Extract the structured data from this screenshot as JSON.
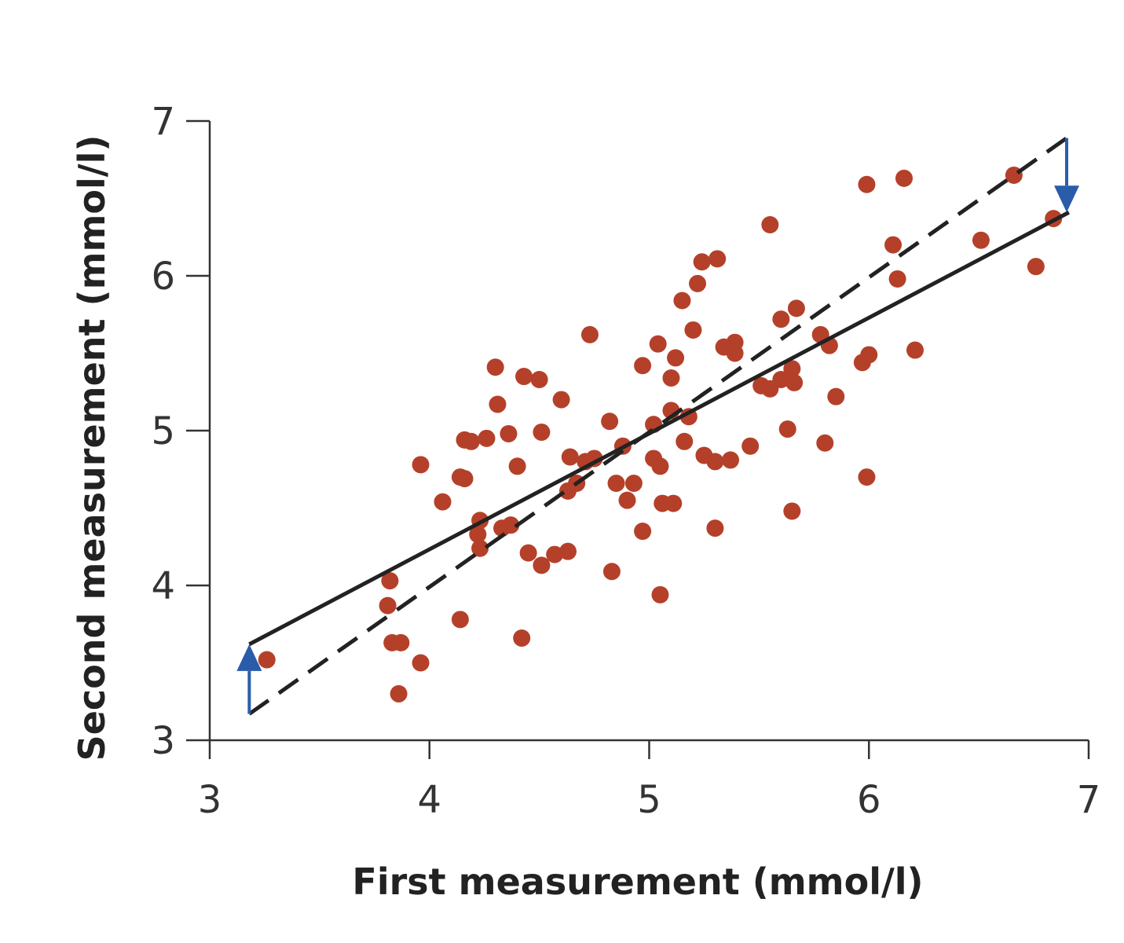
{
  "chart_data": {
    "type": "scatter",
    "xlabel": "First measurement (mmol/l)",
    "ylabel": "Second measurement (mmol/l)",
    "xlim": [
      3,
      7
    ],
    "ylim": [
      3,
      7
    ],
    "xticks": [
      "3",
      "4",
      "5",
      "6",
      "7"
    ],
    "yticks": [
      "3",
      "4",
      "5",
      "6",
      "7"
    ],
    "grid": false,
    "colors": {
      "points": "#b5402a",
      "lines": "#222222",
      "arrows": "#2a5caa"
    },
    "points": [
      [
        3.26,
        3.52
      ],
      [
        3.82,
        4.03
      ],
      [
        3.81,
        3.87
      ],
      [
        3.83,
        3.63
      ],
      [
        3.87,
        3.63
      ],
      [
        3.86,
        3.3
      ],
      [
        3.96,
        3.5
      ],
      [
        3.96,
        4.78
      ],
      [
        4.06,
        4.54
      ],
      [
        4.14,
        3.78
      ],
      [
        4.14,
        4.7
      ],
      [
        4.16,
        4.69
      ],
      [
        4.16,
        4.94
      ],
      [
        4.19,
        4.93
      ],
      [
        4.26,
        4.95
      ],
      [
        4.23,
        4.42
      ],
      [
        4.22,
        4.33
      ],
      [
        4.23,
        4.24
      ],
      [
        4.3,
        5.41
      ],
      [
        4.31,
        5.17
      ],
      [
        4.36,
        4.98
      ],
      [
        4.33,
        4.37
      ],
      [
        4.37,
        4.39
      ],
      [
        4.4,
        4.77
      ],
      [
        4.43,
        5.35
      ],
      [
        4.5,
        5.33
      ],
      [
        4.42,
        3.66
      ],
      [
        4.45,
        4.21
      ],
      [
        4.51,
        4.99
      ],
      [
        4.51,
        4.13
      ],
      [
        4.57,
        4.2
      ],
      [
        4.63,
        4.22
      ],
      [
        4.6,
        5.2
      ],
      [
        4.64,
        4.83
      ],
      [
        4.63,
        4.61
      ],
      [
        4.67,
        4.66
      ],
      [
        4.71,
        4.8
      ],
      [
        4.75,
        4.82
      ],
      [
        4.73,
        5.62
      ],
      [
        4.83,
        4.09
      ],
      [
        4.82,
        5.06
      ],
      [
        4.88,
        4.9
      ],
      [
        4.85,
        4.66
      ],
      [
        4.93,
        4.66
      ],
      [
        4.9,
        4.55
      ],
      [
        4.97,
        4.35
      ],
      [
        4.97,
        5.42
      ],
      [
        5.02,
        5.04
      ],
      [
        5.02,
        4.82
      ],
      [
        5.05,
        4.77
      ],
      [
        5.04,
        5.56
      ],
      [
        5.06,
        4.53
      ],
      [
        5.11,
        4.53
      ],
      [
        5.05,
        3.94
      ],
      [
        5.1,
        5.34
      ],
      [
        5.12,
        5.47
      ],
      [
        5.1,
        5.13
      ],
      [
        5.16,
        4.93
      ],
      [
        5.15,
        5.84
      ],
      [
        5.18,
        5.09
      ],
      [
        5.2,
        5.65
      ],
      [
        5.22,
        5.95
      ],
      [
        5.24,
        6.09
      ],
      [
        5.31,
        6.11
      ],
      [
        5.25,
        4.84
      ],
      [
        5.3,
        4.8
      ],
      [
        5.37,
        4.81
      ],
      [
        5.3,
        4.37
      ],
      [
        5.34,
        5.54
      ],
      [
        5.39,
        5.57
      ],
      [
        5.39,
        5.5
      ],
      [
        5.46,
        4.9
      ],
      [
        5.51,
        5.29
      ],
      [
        5.55,
        5.27
      ],
      [
        5.55,
        6.33
      ],
      [
        5.6,
        5.72
      ],
      [
        5.6,
        5.33
      ],
      [
        5.65,
        5.4
      ],
      [
        5.66,
        5.31
      ],
      [
        5.67,
        5.79
      ],
      [
        5.63,
        5.01
      ],
      [
        5.65,
        4.48
      ],
      [
        5.78,
        5.62
      ],
      [
        5.82,
        5.55
      ],
      [
        5.85,
        5.22
      ],
      [
        5.8,
        4.92
      ],
      [
        5.97,
        5.44
      ],
      [
        6.0,
        5.49
      ],
      [
        5.99,
        4.7
      ],
      [
        5.99,
        6.59
      ],
      [
        6.11,
        6.2
      ],
      [
        6.13,
        5.98
      ],
      [
        6.16,
        6.63
      ],
      [
        6.21,
        5.52
      ],
      [
        6.51,
        6.23
      ],
      [
        6.66,
        6.65
      ],
      [
        6.76,
        6.06
      ],
      [
        6.84,
        6.37
      ]
    ],
    "lines": [
      {
        "style": "solid",
        "from": [
          3.18,
          3.62
        ],
        "to": [
          6.91,
          6.41
        ]
      },
      {
        "style": "dashed",
        "from": [
          3.18,
          3.17
        ],
        "to": [
          6.9,
          6.89
        ]
      }
    ],
    "arrows": [
      {
        "x": 3.18,
        "from": 3.17,
        "to": 3.62
      },
      {
        "x": 6.9,
        "from": 6.89,
        "to": 6.41
      }
    ]
  }
}
